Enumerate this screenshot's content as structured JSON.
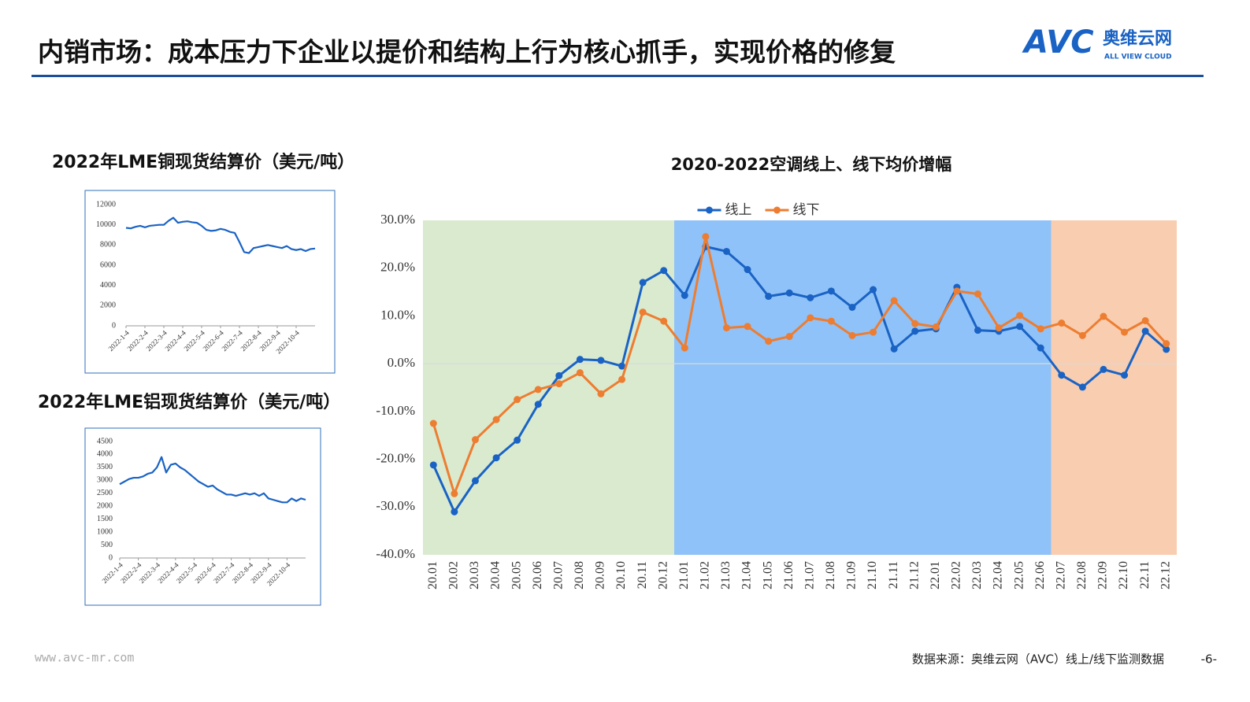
{
  "header": {
    "title": "内销市场：成本压力下企业以提价和结构上行为核心抓手，实现价格的修复",
    "logo": {
      "mark": "AVC",
      "name": "奥维云网",
      "tagline": "ALL VIEW CLOUD"
    }
  },
  "footer": {
    "url": "www.avc-mr.com",
    "source": "数据来源：奥维云网（AVC）线上/线下监测数据",
    "page": "-6-"
  },
  "chart_data": [
    {
      "type": "line",
      "title": "2020-2022空调线上、线下均价增幅",
      "categories": [
        "20.01",
        "20.02",
        "20.03",
        "20.04",
        "20.05",
        "20.06",
        "20.07",
        "20.08",
        "20.09",
        "20.10",
        "20.11",
        "20.12",
        "21.01",
        "21.02",
        "21.03",
        "21.04",
        "21.05",
        "21.06",
        "21.07",
        "21.08",
        "21.09",
        "21.10",
        "21.11",
        "21.12",
        "22.01",
        "22.02",
        "22.03",
        "22.04",
        "22.05",
        "22.06",
        "22.07",
        "22.08",
        "22.09",
        "22.10",
        "22.11",
        "22.12"
      ],
      "series": [
        {
          "name": "线上",
          "color": "#1a63c4",
          "values": [
            -21.2,
            -31,
            -24.5,
            -19.7,
            -16,
            -8.5,
            -2.5,
            0.9,
            0.7,
            -0.5,
            17,
            19.5,
            14.3,
            24.5,
            23.5,
            19.7,
            14.1,
            14.8,
            13.8,
            15.2,
            11.8,
            15.5,
            3.1,
            6.8,
            7.3,
            16,
            7,
            6.8,
            7.8,
            3.3,
            -2.4,
            -4.9,
            -1.2,
            -2.4,
            6.8,
            3
          ]
        },
        {
          "name": "线下",
          "color": "#ed7d31",
          "values": [
            -12.5,
            -27.2,
            -15.9,
            -11.7,
            -7.5,
            -5.4,
            -4.2,
            -1.9,
            -6.3,
            -3.3,
            10.8,
            8.9,
            3.3,
            26.6,
            7.5,
            7.8,
            4.7,
            5.7,
            9.6,
            8.9,
            5.9,
            6.6,
            13.2,
            8.4,
            7.7,
            15.2,
            14.6,
            7.5,
            10.1,
            7.3,
            8.5,
            5.9,
            9.9,
            6.6,
            9,
            4.2
          ]
        }
      ],
      "ylim": [
        -40,
        30
      ],
      "yticks": [
        {
          "value": 30,
          "label": "30.0%"
        },
        {
          "value": 20,
          "label": "20.0%"
        },
        {
          "value": 10,
          "label": "10.0%"
        },
        {
          "value": 0,
          "label": "0.0%"
        },
        {
          "value": -10,
          "label": "-10.0%"
        },
        {
          "value": -20,
          "label": "-20.0%"
        },
        {
          "value": -30,
          "label": "-30.0%"
        },
        {
          "value": -40,
          "label": "-40.0%"
        }
      ],
      "zero_line": true,
      "markers": true,
      "legend": "top",
      "shaded_ranges": [
        {
          "start": "20.01",
          "end": "20.12",
          "color": "#d9eacf"
        },
        {
          "start": "21.01",
          "end": "22.06",
          "color": "#8fc2f8"
        },
        {
          "start": "22.07",
          "end": "22.12",
          "color": "#f8cdb0"
        }
      ]
    },
    {
      "type": "line",
      "title": "2022年LME铜现货结算价（美元/吨）",
      "categories": [
        "2022-1-4",
        null,
        null,
        null,
        "2022-2-4",
        null,
        null,
        null,
        "2022-3-4",
        null,
        null,
        null,
        "2022-4-4",
        null,
        null,
        null,
        "2022-5-4",
        null,
        null,
        null,
        "2022-6-4",
        null,
        null,
        null,
        "2022-7-4",
        null,
        null,
        null,
        "2022-8-4",
        null,
        null,
        null,
        "2022-9-4",
        null,
        null,
        null,
        "2022-10-4",
        null,
        null,
        null,
        null
      ],
      "series": [
        {
          "name": null,
          "color": "#1a63c4",
          "values": [
            9700,
            9650,
            9800,
            9900,
            9750,
            9900,
            9950,
            10000,
            10000,
            10400,
            10700,
            10200,
            10300,
            10350,
            10250,
            10200,
            9900,
            9500,
            9400,
            9450,
            9600,
            9500,
            9300,
            9200,
            8300,
            7300,
            7200,
            7700,
            7800,
            7900,
            8000,
            7900,
            7800,
            7700,
            7900,
            7600,
            7500,
            7600,
            7400,
            7600,
            7650
          ]
        }
      ],
      "ylim": [
        0,
        12000
      ],
      "yticks": [
        12000,
        10000,
        8000,
        6000,
        4000,
        2000,
        0
      ]
    },
    {
      "type": "line",
      "title": "2022年LME铝现货结算价（美元/吨）",
      "categories": [
        "2022-1-4",
        null,
        null,
        null,
        "2022-2-4",
        null,
        null,
        null,
        "2022-3-4",
        null,
        null,
        null,
        "2022-4-4",
        null,
        null,
        null,
        "2022-5-4",
        null,
        null,
        null,
        "2022-6-4",
        null,
        null,
        null,
        "2022-7-4",
        null,
        null,
        null,
        "2022-8-4",
        null,
        null,
        null,
        "2022-9-4",
        null,
        null,
        null,
        "2022-10-4",
        null,
        null,
        null,
        null
      ],
      "series": [
        {
          "name": null,
          "color": "#1a63c4",
          "values": [
            2850,
            2950,
            3050,
            3100,
            3100,
            3150,
            3250,
            3300,
            3500,
            3900,
            3300,
            3600,
            3650,
            3500,
            3400,
            3250,
            3100,
            2950,
            2850,
            2750,
            2800,
            2650,
            2550,
            2450,
            2450,
            2400,
            2450,
            2500,
            2450,
            2500,
            2400,
            2500,
            2300,
            2250,
            2200,
            2150,
            2150,
            2300,
            2200,
            2300,
            2250
          ]
        }
      ],
      "ylim": [
        0,
        4500
      ],
      "yticks": [
        4500,
        4000,
        3500,
        3000,
        2500,
        2000,
        1500,
        1000,
        500,
        0
      ]
    }
  ]
}
